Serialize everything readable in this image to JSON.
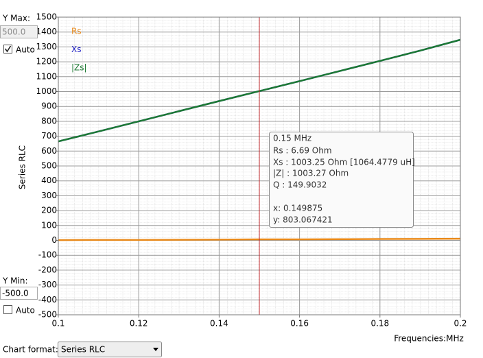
{
  "chart_data": {
    "type": "line",
    "y_label": "Series RLC",
    "x_label": "Frequencies:MHz",
    "x": [
      0.1,
      0.11,
      0.12,
      0.13,
      0.14,
      0.15,
      0.16,
      0.17,
      0.18,
      0.19,
      0.2
    ],
    "series": [
      {
        "name": "Rs",
        "color": "#e8891a",
        "values": [
          2,
          3,
          3,
          4,
          5,
          6.7,
          7,
          8,
          9,
          10,
          11
        ]
      },
      {
        "name": "Xs",
        "color": "#1c1cc4",
        "values": [
          665,
          732,
          800,
          868,
          936,
          1003,
          1070,
          1138,
          1206,
          1275,
          1348
        ]
      },
      {
        "name": "|Zs|",
        "color": "#1d7a33",
        "values": [
          665,
          732,
          800,
          868,
          936,
          1003,
          1070,
          1138,
          1206,
          1275,
          1348
        ]
      }
    ],
    "xlim": [
      0.1,
      0.2
    ],
    "ylim": [
      -500,
      1500
    ],
    "xticks": [
      0.1,
      0.12,
      0.14,
      0.16,
      0.18,
      0.2
    ],
    "yticks": [
      -500,
      -400,
      -300,
      -200,
      -100,
      0,
      100,
      200,
      300,
      400,
      500,
      600,
      700,
      800,
      900,
      1000,
      1100,
      1200,
      1300,
      1400,
      1500
    ],
    "grid": true,
    "cursor_x": 0.15,
    "cursor_color": "#c0282c",
    "tooltip": [
      "0.15 MHz",
      "Rs :  6.69 Ohm",
      "Xs :  1003.25 Ohm [1064.4779 uH]",
      "|Z| :  1003.27 Ohm",
      "Q :  149.9032",
      "x: 0.149875",
      "y: 803.067421"
    ]
  },
  "controls": {
    "y_max_label": "Y Max:",
    "y_max_value": "500.0",
    "y_max_auto": true,
    "auto_label": "Auto",
    "y_min_label": "Y Min:",
    "y_min_value": "-500.0",
    "y_min_auto": false,
    "chart_format_label": "Chart format:",
    "chart_format_value": "Series RLC"
  }
}
